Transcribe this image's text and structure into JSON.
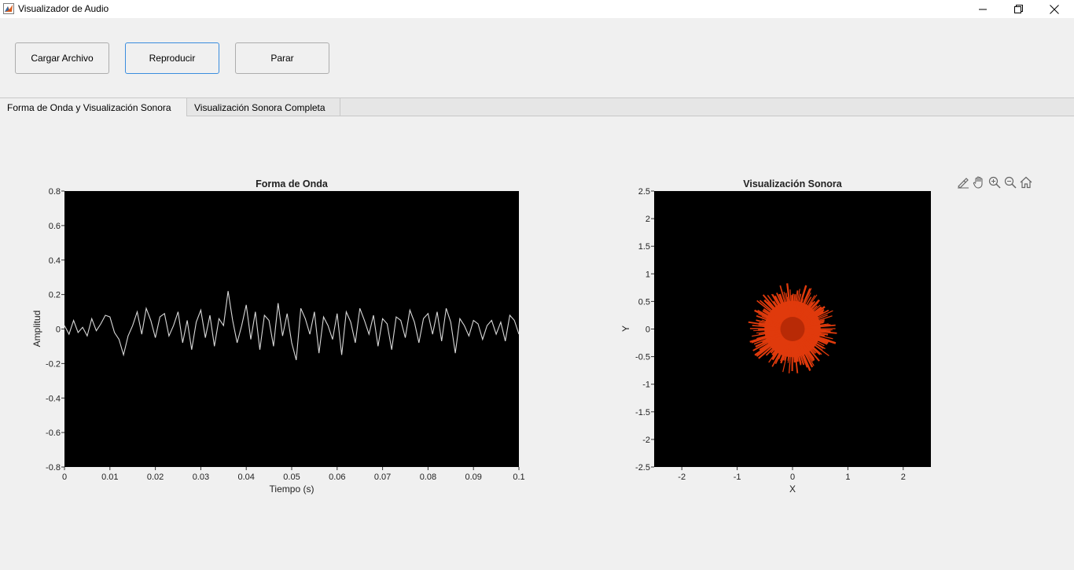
{
  "window": {
    "title": "Visualizador de Audio",
    "icon": "matlab-icon",
    "controls": [
      "minimize-icon",
      "restore-icon",
      "close-icon"
    ]
  },
  "toolbar": {
    "load_label": "Cargar Archivo",
    "play_label": "Reproducir",
    "stop_label": "Parar"
  },
  "tabs": [
    {
      "label": "Forma de Onda y Visualización Sonora",
      "active": true
    },
    {
      "label": "Visualización Sonora Completa",
      "active": false
    }
  ],
  "axes_tools": [
    "brush-icon",
    "pan-icon",
    "zoom-in-icon",
    "zoom-out-icon",
    "home-icon"
  ],
  "colors": {
    "plot_bg": "#000000",
    "waveform": "#d9d9d9",
    "burst": "#e03a0c",
    "burst_core": "#b82a06"
  },
  "chart_data": [
    {
      "type": "line",
      "title": "Forma de Onda",
      "xlabel": "Tiempo (s)",
      "ylabel": "Amplitud",
      "xlim": [
        0,
        0.1
      ],
      "ylim": [
        -0.8,
        0.8
      ],
      "x_ticks": [
        "0",
        "0.01",
        "0.02",
        "0.03",
        "0.04",
        "0.05",
        "0.06",
        "0.07",
        "0.08",
        "0.09",
        "0.1"
      ],
      "y_ticks": [
        "0.8",
        "0.6",
        "0.4",
        "0.2",
        "0",
        "-0.2",
        "-0.4",
        "-0.6",
        "-0.8"
      ],
      "series": [
        {
          "x": [
            0,
            0.001,
            0.002,
            0.003,
            0.004,
            0.005,
            0.006,
            0.007,
            0.008,
            0.009,
            0.01,
            0.011,
            0.012,
            0.013,
            0.014,
            0.015,
            0.016,
            0.017,
            0.018,
            0.019,
            0.02,
            0.021,
            0.022,
            0.023,
            0.024,
            0.025,
            0.026,
            0.027,
            0.028,
            0.029,
            0.03,
            0.031,
            0.032,
            0.033,
            0.034,
            0.035,
            0.036,
            0.037,
            0.038,
            0.039,
            0.04,
            0.041,
            0.042,
            0.043,
            0.044,
            0.045,
            0.046,
            0.047,
            0.048,
            0.049,
            0.05,
            0.051,
            0.052,
            0.053,
            0.054,
            0.055,
            0.056,
            0.057,
            0.058,
            0.059,
            0.06,
            0.061,
            0.062,
            0.063,
            0.064,
            0.065,
            0.066,
            0.067,
            0.068,
            0.069,
            0.07,
            0.071,
            0.072,
            0.073,
            0.074,
            0.075,
            0.076,
            0.077,
            0.078,
            0.079,
            0.08,
            0.081,
            0.082,
            0.083,
            0.084,
            0.085,
            0.086,
            0.087,
            0.088,
            0.089,
            0.09,
            0.091,
            0.092,
            0.093,
            0.094,
            0.095,
            0.096,
            0.097,
            0.098,
            0.099,
            0.1
          ],
          "y": [
            0.02,
            -0.03,
            0.05,
            -0.02,
            0.01,
            -0.04,
            0.06,
            -0.01,
            0.03,
            0.08,
            0.07,
            -0.02,
            -0.06,
            -0.15,
            -0.04,
            0.02,
            0.1,
            -0.03,
            0.12,
            0.05,
            -0.05,
            0.07,
            0.09,
            -0.04,
            0.02,
            0.1,
            -0.08,
            0.05,
            -0.12,
            0.04,
            0.11,
            -0.05,
            0.08,
            -0.1,
            0.06,
            0.02,
            0.22,
            0.05,
            -0.08,
            0.02,
            0.14,
            -0.06,
            0.1,
            -0.12,
            0.08,
            0.05,
            -0.1,
            0.15,
            -0.04,
            0.09,
            -0.08,
            -0.18,
            0.12,
            0.06,
            -0.03,
            0.1,
            -0.14,
            0.07,
            0.02,
            -0.06,
            0.09,
            -0.15,
            0.1,
            0.04,
            -0.08,
            0.12,
            0.05,
            -0.03,
            0.08,
            -0.1,
            0.06,
            0.03,
            -0.12,
            0.07,
            0.05,
            -0.05,
            0.11,
            0.04,
            -0.08,
            0.06,
            0.09,
            -0.03,
            0.1,
            -0.07,
            0.12,
            0.04,
            -0.14,
            0.06,
            0.02,
            -0.04,
            0.05,
            0.03,
            -0.06,
            0.02,
            0.05,
            -0.03,
            0.04,
            -0.07,
            0.08,
            0.05,
            -0.03
          ]
        }
      ],
      "grid": false
    },
    {
      "type": "scatter",
      "title": "Visualización Sonora",
      "xlabel": "X",
      "ylabel": "Y",
      "xlim": [
        -2.5,
        2.5
      ],
      "ylim": [
        -2.5,
        2.5
      ],
      "x_ticks": [
        "-2",
        "-1",
        "0",
        "1",
        "2"
      ],
      "y_ticks": [
        "2.5",
        "2",
        "1.5",
        "1",
        "0.5",
        "0",
        "-0.5",
        "-1",
        "-1.5",
        "-2",
        "-2.5"
      ],
      "center": [
        0,
        0
      ],
      "core_radius": 0.22,
      "outer_radius": 0.82,
      "grid": false
    }
  ]
}
